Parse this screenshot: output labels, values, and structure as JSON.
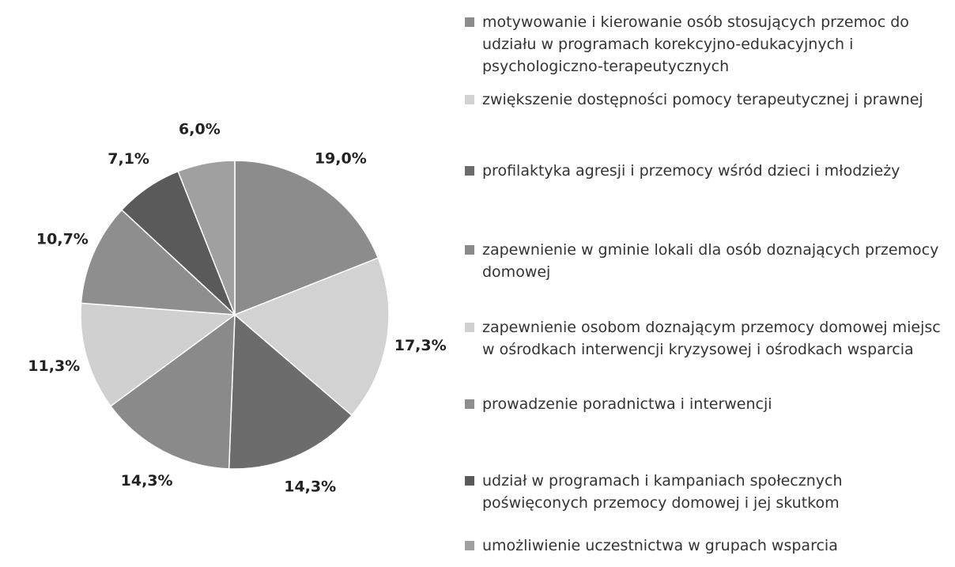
{
  "chart_data": {
    "type": "pie",
    "categories": [
      "motywowanie i kierowanie osób stosujących przemoc do udziału w programach korekcyjno-edukacyjnych i psychologiczno-terapeutycznych",
      "zwiększenie dostępności pomocy terapeutycznej i prawnej",
      "profilaktyka agresji i przemocy wśród dzieci i młodzieży",
      "zapewnienie w gminie lokali dla osób doznających przemocy domowej",
      "zapewnienie osobom doznającym przemocy domowej miejsc w ośrodkach interwencji kryzysowej i ośrodkach wsparcia",
      "prowadzenie poradnictwa i interwencji",
      "udział w programach i kampaniach społecznych poświęconych przemocy domowej i jej skutkom",
      "umożliwienie uczestnictwa w grupach wsparcia"
    ],
    "values": [
      19.0,
      17.3,
      14.3,
      14.3,
      11.3,
      10.7,
      7.1,
      6.0
    ],
    "value_labels": [
      "19,0%",
      "17,3%",
      "14,3%",
      "14,3%",
      "11,3%",
      "10,7%",
      "7,1%",
      "6,0%"
    ],
    "colors": [
      "#8c8c8c",
      "#d2d2d2",
      "#6c6c6c",
      "#8a8a8a",
      "#d0d0d0",
      "#8e8e8e",
      "#5a5a5a",
      "#a0a0a0"
    ]
  }
}
